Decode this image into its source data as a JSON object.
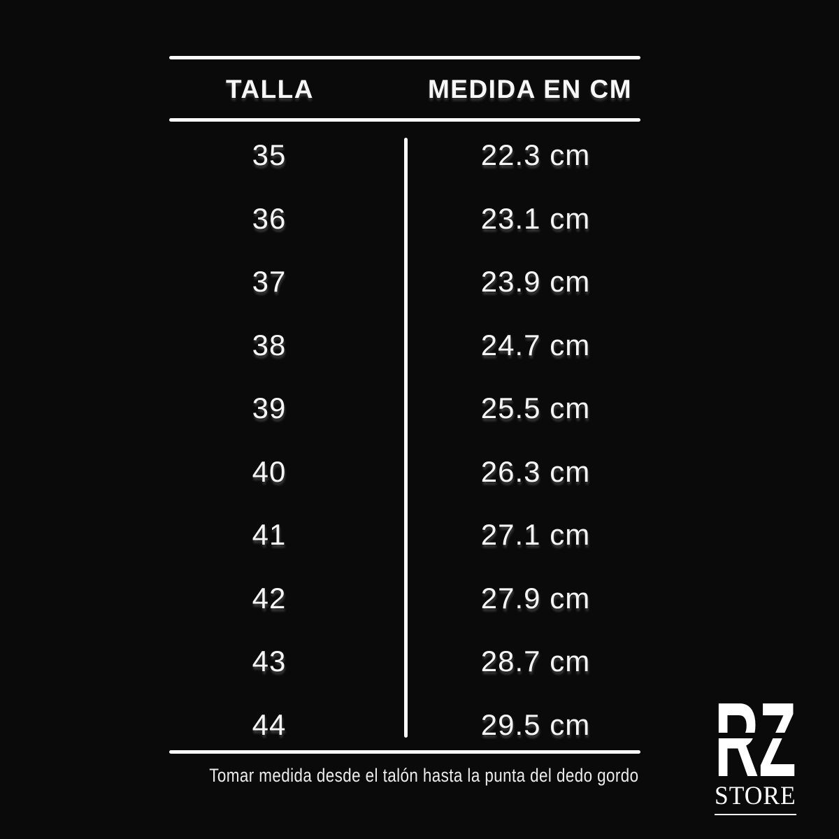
{
  "chart_data": {
    "type": "table",
    "columns": [
      "TALLA",
      "MEDIDA EN CM"
    ],
    "rows": [
      [
        "35",
        "22.3 cm"
      ],
      [
        "36",
        "23.1 cm"
      ],
      [
        "37",
        "23.9 cm"
      ],
      [
        "38",
        "24.7 cm"
      ],
      [
        "39",
        "25.5 cm"
      ],
      [
        "40",
        "26.3 cm"
      ],
      [
        "41",
        "27.1 cm"
      ],
      [
        "42",
        "27.9 cm"
      ],
      [
        "43",
        "28.7 cm"
      ],
      [
        "44",
        "29.5 cm"
      ]
    ],
    "title": "",
    "layout_hints": {
      "background": "#0a0a0a",
      "text_color": "#f5f5f5",
      "rule_color": "#fbfbfb",
      "grid": "horizontal rules top/header/bottom + center column divider"
    }
  },
  "footer_note": "Tomar medida desde el talón hasta la punta del dedo gordo",
  "logo": {
    "letters": "RZ",
    "store_label": "STORE"
  },
  "colors": {
    "background": "#0a0a0a",
    "text": "#f5f5f5",
    "accent": "#ffffff"
  }
}
